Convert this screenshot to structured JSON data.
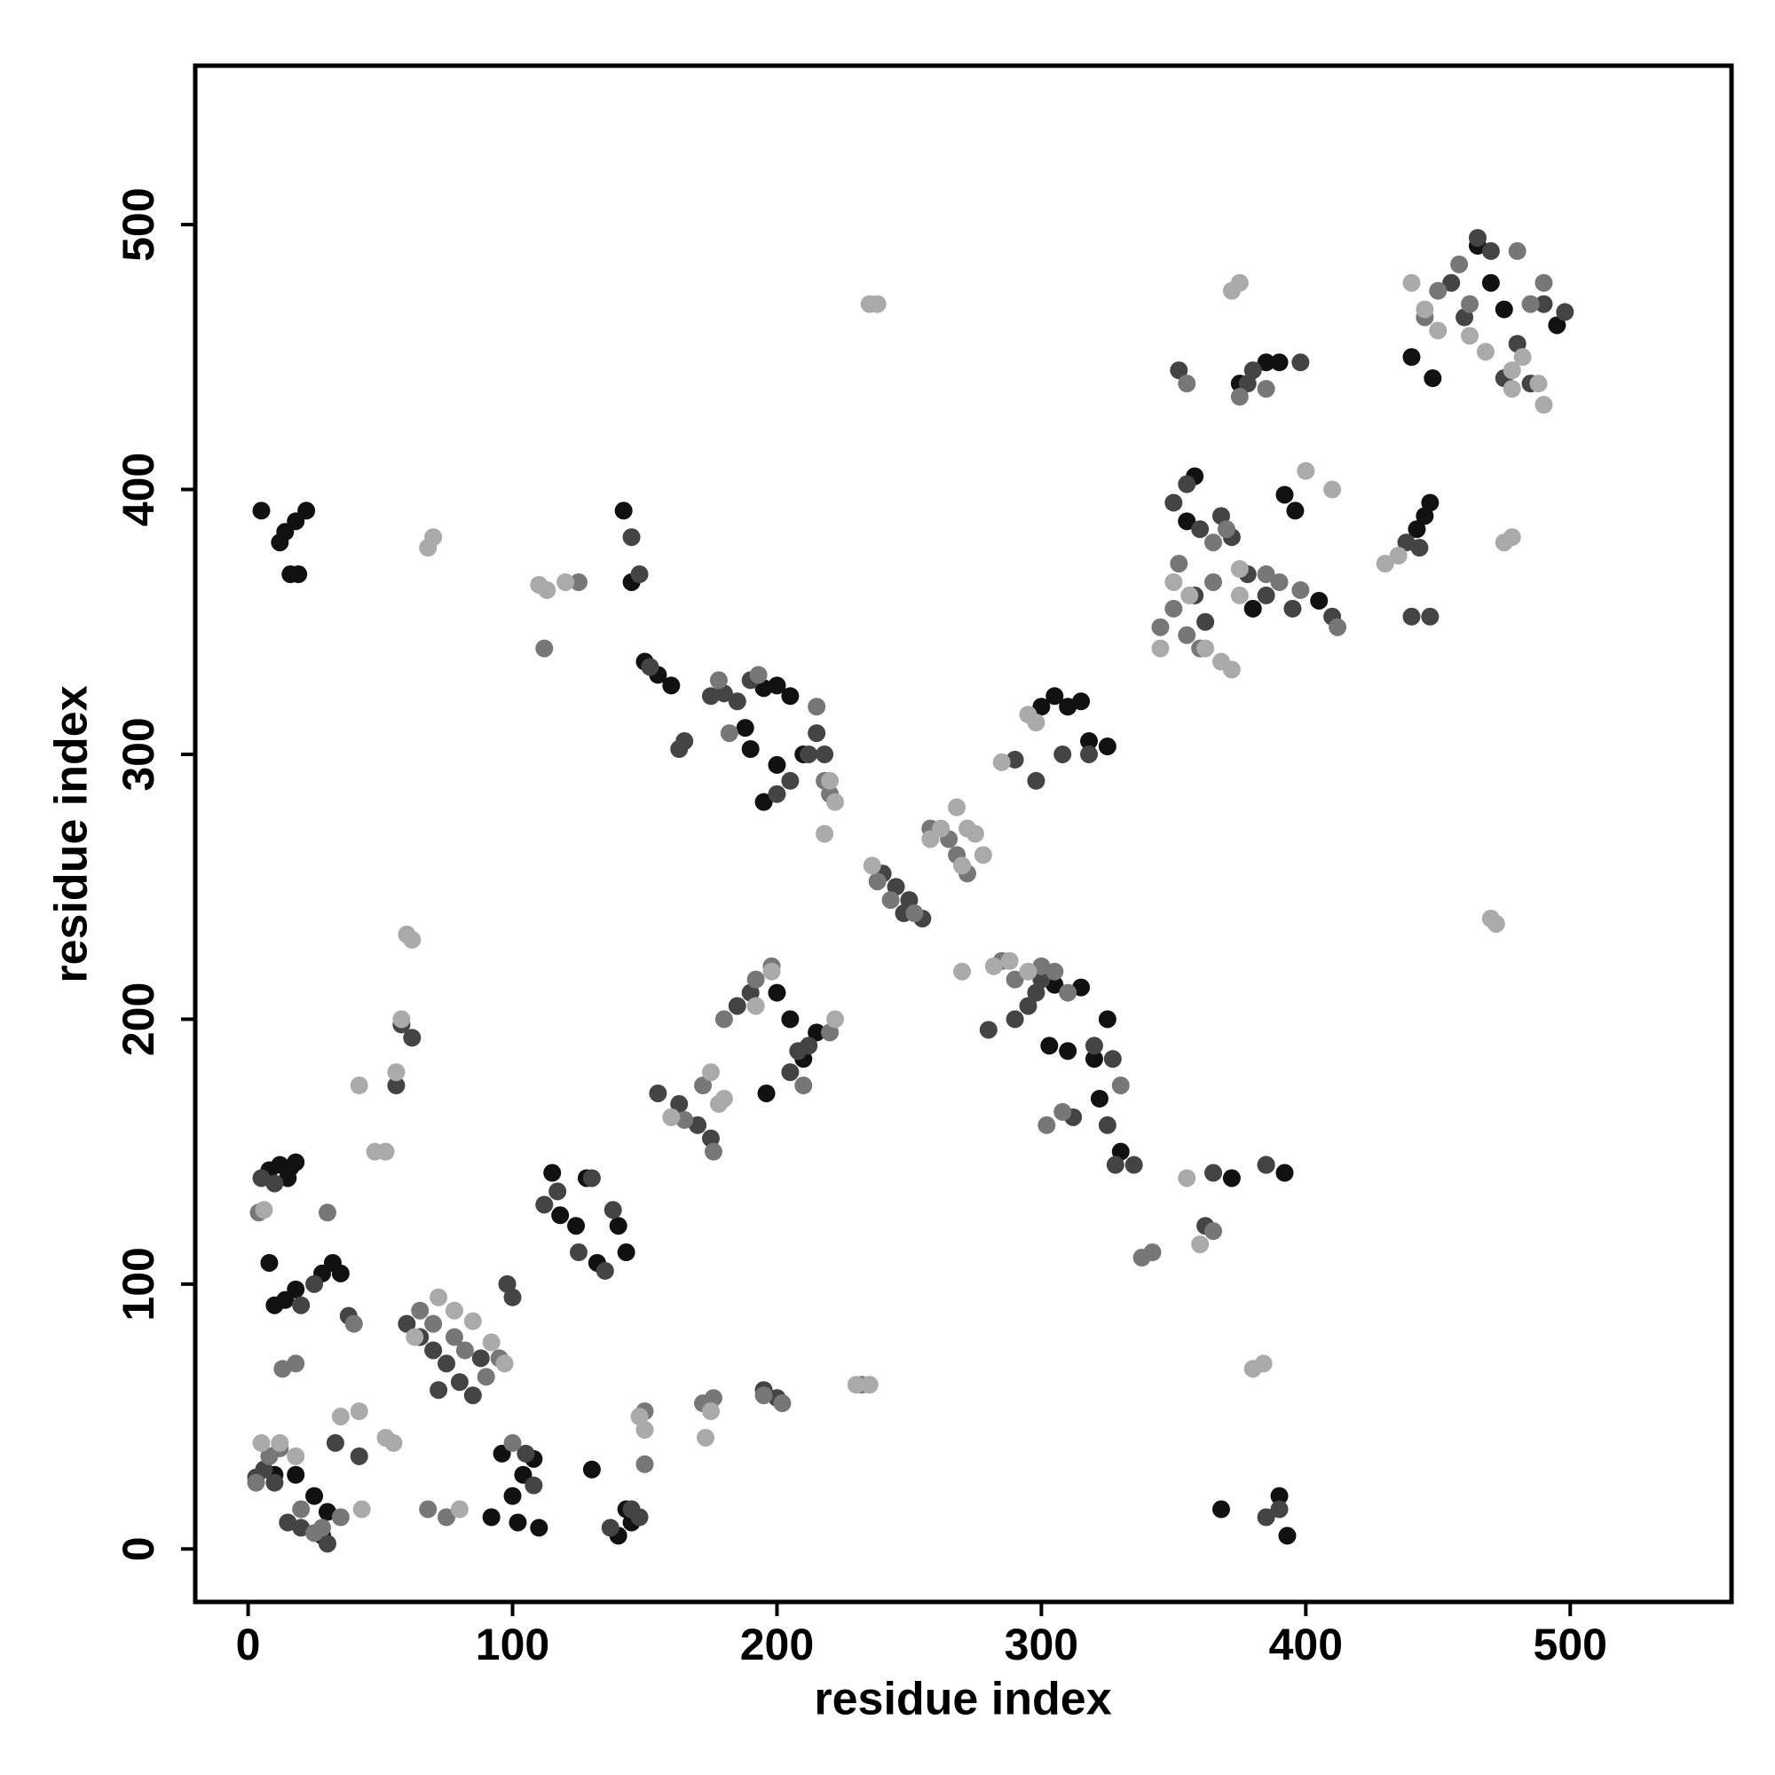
{
  "chart_data": {
    "type": "scatter",
    "x_label": "residue index",
    "y_label": "residue index",
    "xlim": [
      -20,
      561
    ],
    "ylim": [
      -20,
      560
    ],
    "xticks": [
      0,
      100,
      200,
      300,
      400,
      500
    ],
    "yticks": [
      0,
      100,
      200,
      300,
      400,
      500
    ],
    "series": [
      {
        "color": "#111111",
        "x": [
          5,
          12,
          14,
          18,
          22,
          16,
          19,
          8,
          12,
          15,
          18,
          16,
          8,
          10,
          14,
          18,
          28,
          32,
          35,
          10,
          18,
          25,
          28,
          30,
          92,
          96,
          100,
          104,
          108,
          110,
          102,
          115,
          118,
          124,
          128,
          132,
          140,
          143,
          130,
          140,
          143,
          145,
          142,
          145,
          150,
          155,
          160,
          188,
          190,
          195,
          200,
          205,
          196,
          200,
          205,
          210,
          215,
          195,
          200,
          210,
          303,
          305,
          310,
          315,
          320,
          325,
          322,
          330,
          300,
          305,
          310,
          315,
          318,
          325,
          368,
          372,
          385,
          392,
          390,
          393,
          355,
          358,
          380,
          392,
          396,
          405,
          375,
          385,
          390,
          442,
          445,
          447,
          440,
          448,
          465,
          470,
          475,
          495
        ],
        "values": [
          392,
          380,
          384,
          388,
          392,
          368,
          368,
          143,
          145,
          140,
          146,
          144,
          108,
          92,
          94,
          98,
          104,
          108,
          104,
          28,
          28,
          20,
          5,
          14,
          12,
          36,
          20,
          28,
          34,
          8,
          10,
          142,
          126,
          122,
          140,
          108,
          122,
          112,
          30,
          5,
          15,
          10,
          392,
          365,
          335,
          330,
          326,
          310,
          302,
          325,
          326,
          322,
          172,
          210,
          200,
          185,
          195,
          282,
          296,
          300,
          190,
          213,
          188,
          212,
          185,
          200,
          170,
          150,
          318,
          322,
          318,
          320,
          305,
          303,
          15,
          140,
          145,
          142,
          20,
          5,
          388,
          405,
          355,
          398,
          392,
          358,
          440,
          448,
          448,
          385,
          390,
          395,
          450,
          442,
          492,
          478,
          468,
          462
        ]
      },
      {
        "color": "#444444",
        "x": [
          3,
          6,
          10,
          15,
          20,
          33,
          42,
          30,
          5,
          10,
          20,
          25,
          38,
          60,
          65,
          70,
          75,
          80,
          85,
          88,
          72,
          98,
          100,
          105,
          108,
          112,
          117,
          125,
          130,
          135,
          138,
          137,
          145,
          148,
          58,
          62,
          56,
          145,
          148,
          152,
          165,
          163,
          175,
          180,
          185,
          190,
          185,
          190,
          205,
          208,
          212,
          205,
          212,
          215,
          218,
          200,
          155,
          163,
          170,
          175,
          195,
          200,
          280,
          290,
          295,
          298,
          300,
          320,
          327,
          325,
          328,
          335,
          290,
          298,
          308,
          318,
          312,
          240,
          245,
          248,
          250,
          255,
          365,
          362,
          385,
          390,
          385,
          350,
          355,
          360,
          368,
          372,
          378,
          385,
          395,
          410,
          358,
          362,
          352,
          380,
          378,
          398,
          438,
          443,
          440,
          447,
          455,
          460,
          465,
          470,
          490,
          498,
          480,
          475,
          485
        ],
        "values": [
          27,
          30,
          25,
          10,
          8,
          40,
          35,
          2,
          140,
          138,
          92,
          100,
          88,
          85,
          80,
          75,
          70,
          63,
          58,
          72,
          60,
          100,
          95,
          36,
          24,
          130,
          135,
          112,
          140,
          105,
          128,
          8,
          15,
          12,
          198,
          193,
          175,
          382,
          368,
          333,
          305,
          302,
          322,
          323,
          320,
          328,
          205,
          210,
          180,
          188,
          190,
          290,
          300,
          308,
          300,
          285,
          172,
          168,
          160,
          155,
          60,
          57,
          196,
          200,
          205,
          210,
          215,
          190,
          185,
          160,
          145,
          145,
          298,
          290,
          300,
          300,
          163,
          255,
          250,
          240,
          245,
          238,
          142,
          122,
          145,
          15,
          12,
          395,
          402,
          385,
          390,
          382,
          368,
          360,
          355,
          352,
          360,
          350,
          445,
          445,
          440,
          448,
          380,
          378,
          352,
          352,
          478,
          465,
          495,
          490,
          470,
          467,
          455,
          442,
          440
        ]
      },
      {
        "color": "#777777",
        "x": [
          3,
          8,
          12,
          20,
          28,
          35,
          25,
          4,
          30,
          40,
          18,
          13,
          65,
          70,
          78,
          82,
          90,
          95,
          68,
          75,
          100,
          112,
          125,
          150,
          150,
          172,
          176,
          195,
          202,
          178,
          193,
          182,
          215,
          218,
          220,
          180,
          192,
          198,
          210,
          220,
          165,
          172,
          176,
          232,
          238,
          243,
          252,
          258,
          265,
          268,
          272,
          300,
          305,
          285,
          290,
          310,
          302,
          308,
          330,
          338,
          342,
          365,
          345,
          350,
          355,
          360,
          365,
          352,
          365,
          370,
          385,
          390,
          398,
          412,
          355,
          375,
          385,
          450,
          458,
          462,
          480,
          485,
          490,
          445
        ],
        "values": [
          25,
          35,
          38,
          15,
          8,
          12,
          6,
          127,
          127,
          85,
          70,
          68,
          90,
          85,
          80,
          75,
          65,
          72,
          15,
          12,
          40,
          340,
          365,
          52,
          32,
          55,
          57,
          58,
          55,
          328,
          330,
          308,
          318,
          290,
          285,
          200,
          215,
          220,
          175,
          195,
          162,
          175,
          150,
          62,
          252,
          245,
          240,
          272,
          268,
          262,
          255,
          220,
          218,
          222,
          215,
          210,
          160,
          165,
          175,
          110,
          112,
          120,
          348,
          355,
          345,
          340,
          365,
          372,
          380,
          385,
          368,
          365,
          362,
          348,
          440,
          435,
          438,
          475,
          485,
          470,
          490,
          470,
          478,
          465
        ]
      },
      {
        "color": "#aaaaaa",
        "x": [
          5,
          12,
          18,
          35,
          42,
          52,
          55,
          6,
          48,
          52,
          42,
          60,
          62,
          56,
          58,
          68,
          70,
          72,
          78,
          85,
          92,
          97,
          63,
          80,
          43,
          110,
          113,
          120,
          150,
          148,
          173,
          175,
          178,
          175,
          180,
          160,
          192,
          198,
          222,
          220,
          222,
          218,
          235,
          238,
          230,
          235,
          236,
          258,
          262,
          268,
          272,
          275,
          278,
          270,
          270,
          282,
          288,
          295,
          295,
          298,
          285,
          350,
          356,
          362,
          368,
          372,
          345,
          375,
          375,
          355,
          360,
          380,
          384,
          400,
          410,
          372,
          375,
          440,
          445,
          450,
          462,
          468,
          478,
          482,
          488,
          490,
          478,
          430,
          435,
          470,
          472,
          475,
          478
        ],
        "values": [
          40,
          40,
          35,
          50,
          52,
          42,
          40,
          128,
          150,
          150,
          175,
          232,
          230,
          180,
          200,
          378,
          382,
          95,
          90,
          86,
          78,
          70,
          80,
          15,
          15,
          364,
          362,
          365,
          45,
          50,
          42,
          52,
          168,
          180,
          170,
          163,
          205,
          218,
          200,
          290,
          282,
          270,
          470,
          470,
          62,
          62,
          258,
          268,
          272,
          280,
          272,
          270,
          262,
          258,
          218,
          220,
          222,
          218,
          315,
          312,
          297,
          365,
          360,
          340,
          335,
          332,
          340,
          360,
          370,
          140,
          115,
          68,
          70,
          407,
          400,
          475,
          478,
          478,
          468,
          460,
          458,
          452,
          445,
          450,
          440,
          432,
          438,
          372,
          375,
          238,
          236,
          380,
          382
        ]
      }
    ]
  }
}
